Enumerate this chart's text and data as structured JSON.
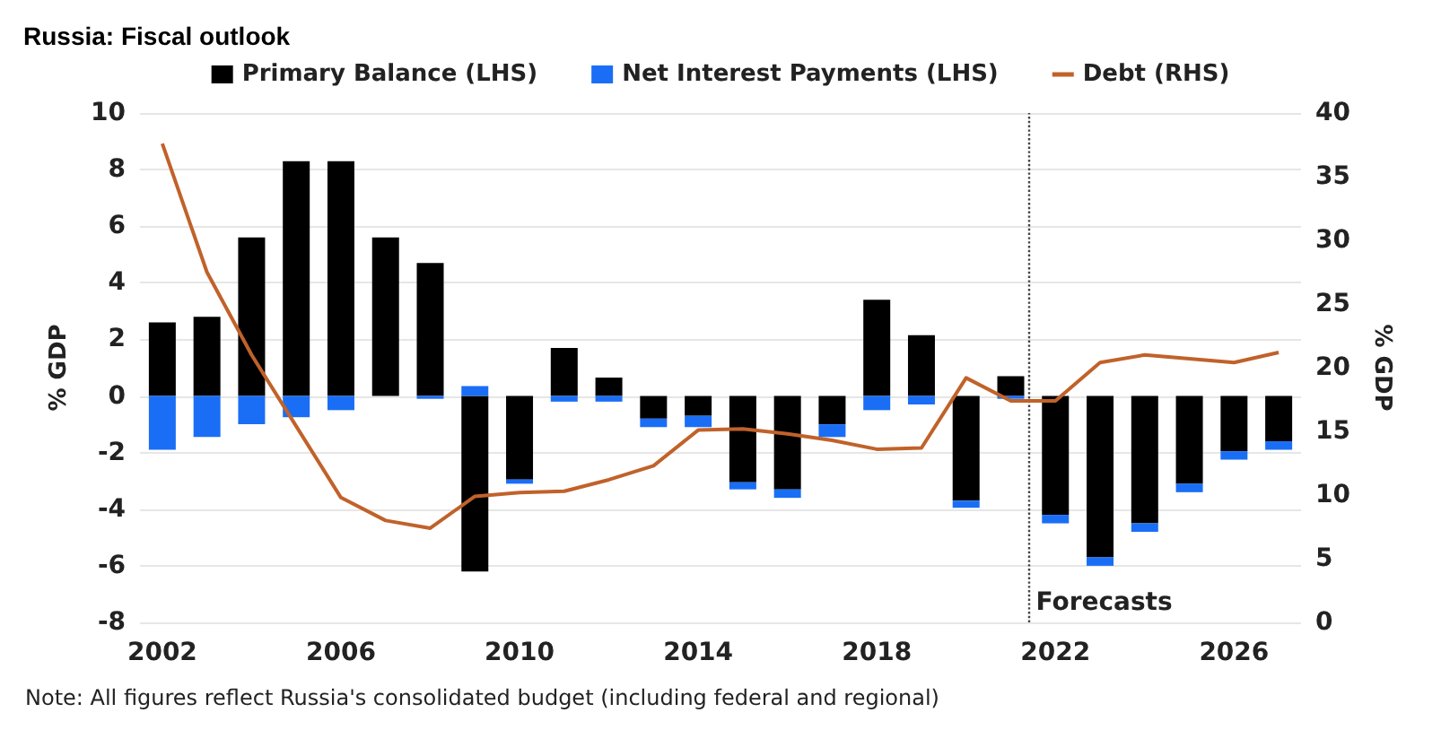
{
  "chart_data": {
    "type": "bar",
    "title": "Russia: Fiscal outlook",
    "ylabel": "% GDP",
    "y2label": "% GDP",
    "stacked": true,
    "x": [
      2002,
      2003,
      2004,
      2005,
      2006,
      2007,
      2008,
      2009,
      2010,
      2011,
      2012,
      2013,
      2014,
      2015,
      2016,
      2017,
      2018,
      2019,
      2020,
      2021,
      2022,
      2023,
      2024,
      2025,
      2026,
      2027
    ],
    "series": [
      {
        "name": "Primary Balance (LHS)",
        "color": "#000000",
        "values": [
          2.6,
          2.8,
          5.6,
          8.3,
          8.3,
          5.6,
          4.7,
          -6.2,
          -2.95,
          1.7,
          0.65,
          -0.8,
          -0.7,
          -3.05,
          -3.3,
          -1.0,
          3.4,
          2.15,
          -3.7,
          0.7,
          -4.2,
          -5.7,
          -4.5,
          -3.1,
          -1.95,
          -1.6
        ]
      },
      {
        "name": "Net Interest Payments (LHS)",
        "color": "#1a6ef5",
        "values": [
          -1.9,
          -1.45,
          -1.0,
          -0.75,
          -0.5,
          0,
          -0.1,
          0.35,
          -0.15,
          -0.2,
          -0.2,
          -0.3,
          -0.4,
          -0.25,
          -0.3,
          -0.45,
          -0.5,
          -0.3,
          -0.25,
          -0.1,
          -0.3,
          -0.3,
          -0.3,
          -0.3,
          -0.3,
          -0.3
        ]
      },
      {
        "name": "Debt (RHS)",
        "type": "line",
        "axis": "y2",
        "color": "#c0622a",
        "values": [
          37.6,
          27.5,
          21.0,
          15.4,
          9.8,
          8.0,
          7.4,
          9.9,
          10.2,
          10.3,
          11.2,
          12.3,
          15.1,
          15.2,
          14.8,
          14.3,
          13.6,
          13.7,
          19.2,
          17.4,
          17.4,
          20.4,
          21.0,
          20.7,
          20.4,
          21.2
        ]
      }
    ],
    "xlim": [
      2001.5,
      2027.5
    ],
    "xticks": [
      2002,
      2006,
      2010,
      2014,
      2018,
      2022,
      2026
    ],
    "ylim": [
      -8,
      10
    ],
    "yticks": [
      -8,
      -6,
      -4,
      -2,
      0,
      2,
      4,
      6,
      8,
      10
    ],
    "y2lim": [
      0,
      40
    ],
    "y2ticks": [
      0,
      5,
      10,
      15,
      20,
      25,
      30,
      35,
      40
    ],
    "ref_lines": [
      {
        "axis": "x",
        "value": 2021.4,
        "label": "Forecasts",
        "line_style": "dotted",
        "color": "#444444"
      }
    ],
    "grid": "y",
    "legend": "top",
    "marker": "none",
    "annotations": [
      "Note: All figures reflect Russia's consolidated budget (including federal and regional)"
    ]
  }
}
